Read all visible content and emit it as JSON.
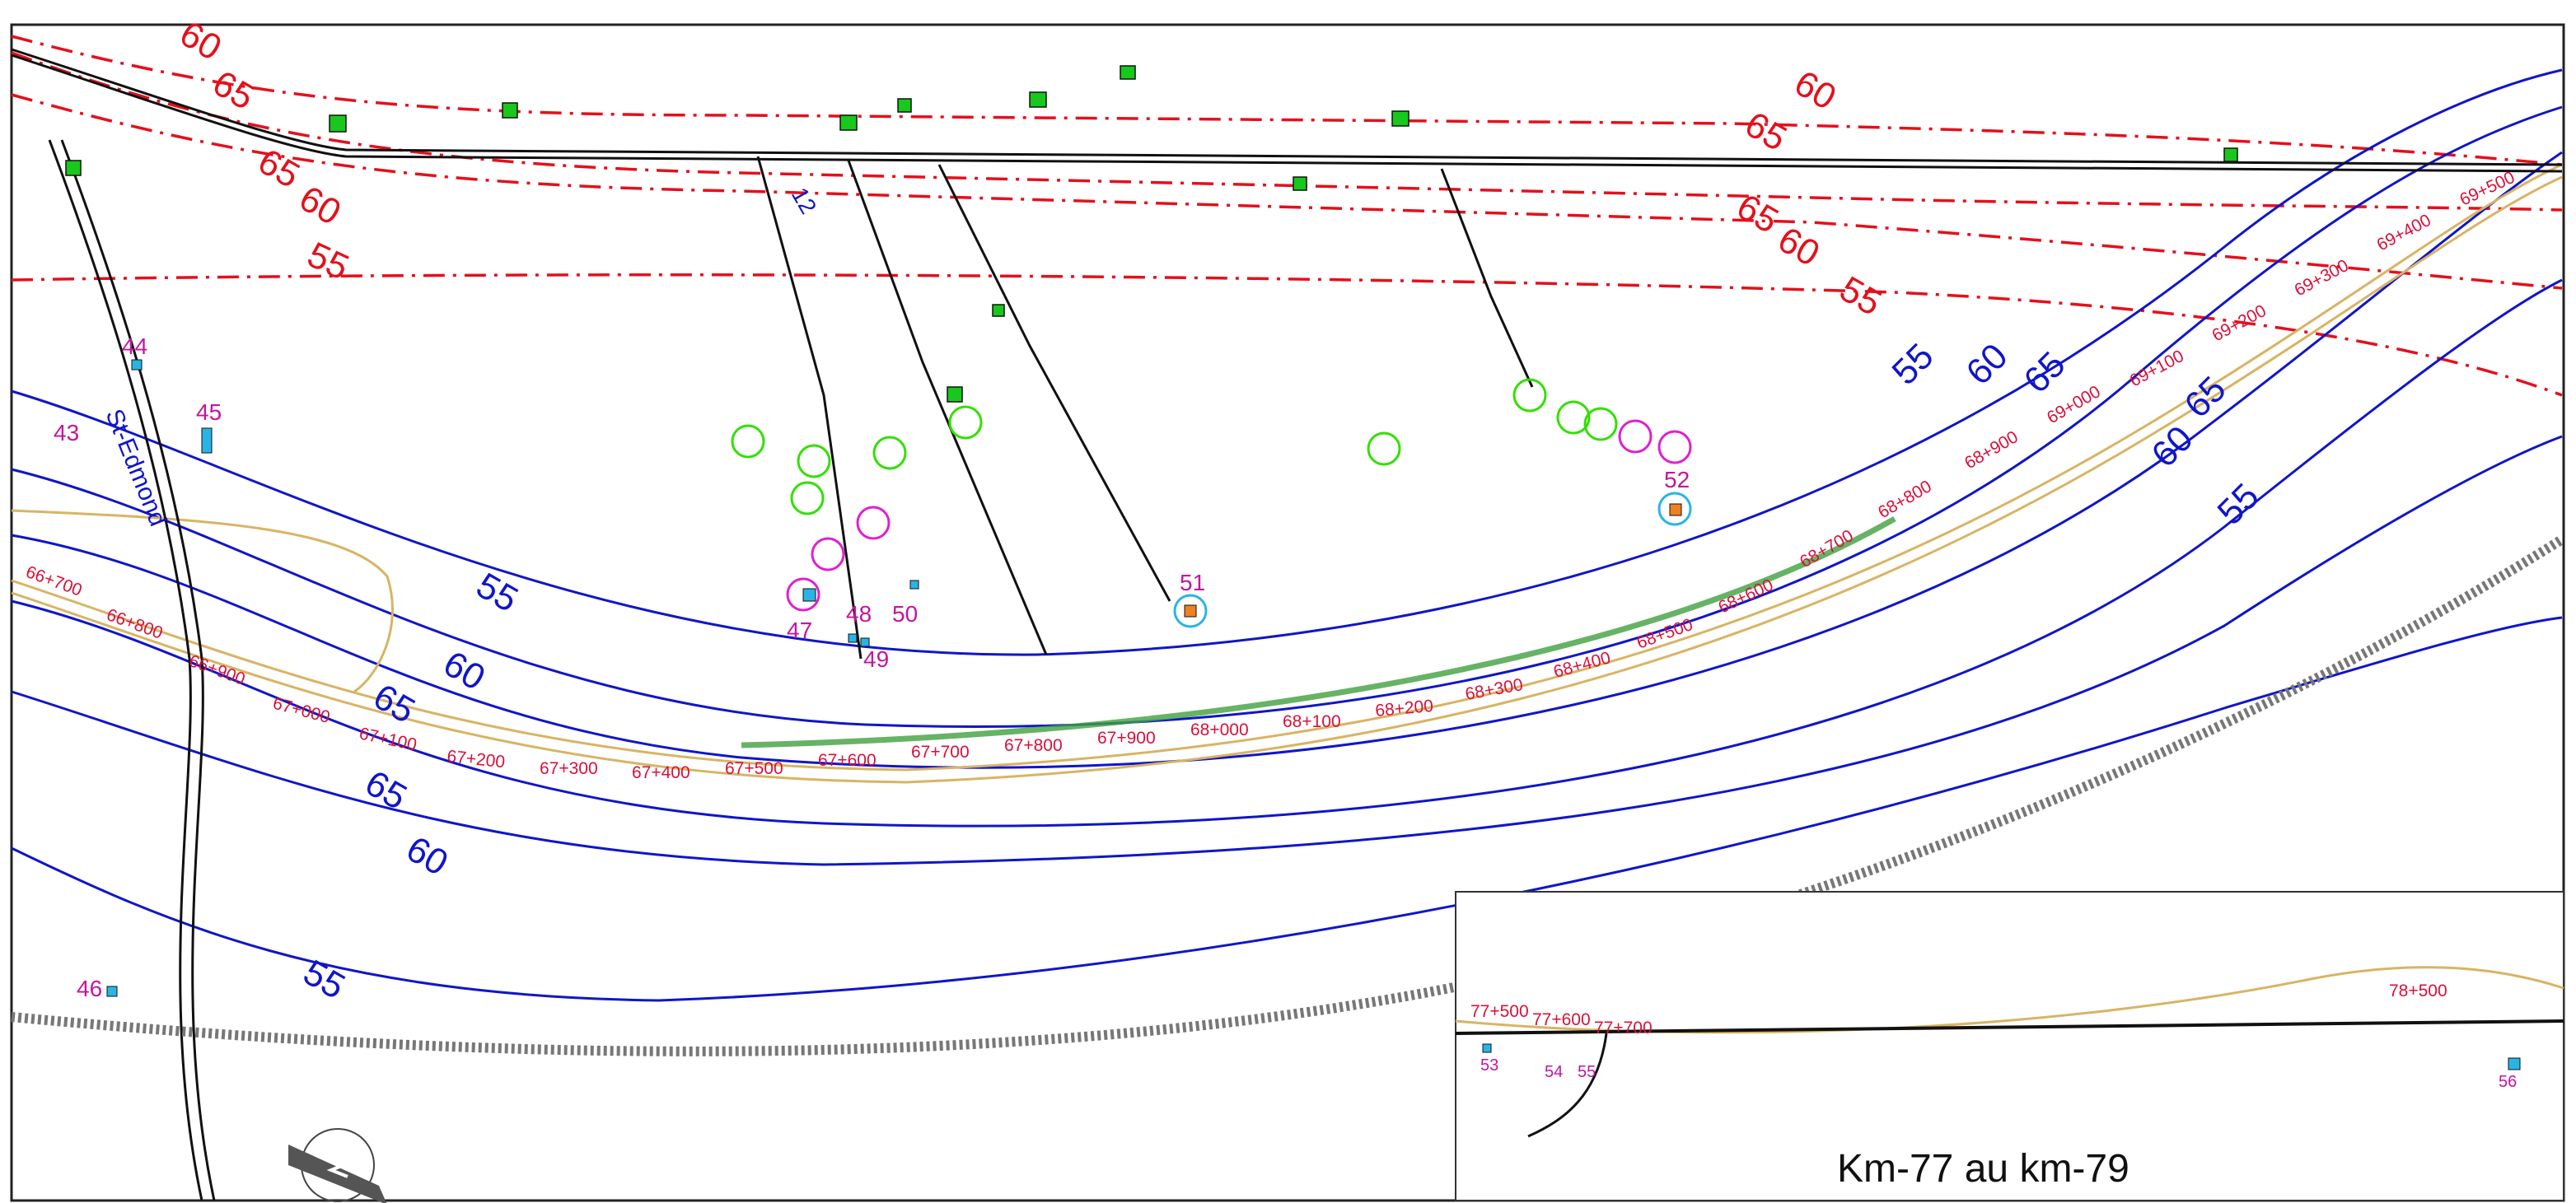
{
  "map": {
    "red_contours": [
      "60",
      "65",
      "65",
      "60",
      "55",
      "60",
      "65",
      "65",
      "60",
      "55"
    ],
    "blue_contours": [
      "55",
      "60",
      "65",
      "65",
      "60",
      "55",
      "55",
      "60",
      "65",
      "65",
      "60",
      "55"
    ],
    "receptors": [
      "12",
      "43",
      "44",
      "45",
      "46",
      "47",
      "48",
      "49",
      "50",
      "51",
      "52",
      "53",
      "54",
      "55",
      "56"
    ],
    "road_label": "St-Edmond",
    "km_main": [
      "66+700",
      "66+800",
      "66+900",
      "67+000",
      "67+100",
      "67+200",
      "67+300",
      "67+400",
      "67+500",
      "67+600",
      "67+700",
      "67+800",
      "67+900",
      "68+000",
      "68+100",
      "68+200",
      "68+300",
      "68+400",
      "68+500",
      "68+600",
      "68+700",
      "68+800",
      "68+900",
      "69+000",
      "69+100",
      "69+200",
      "69+300",
      "69+400",
      "69+500"
    ],
    "inset": {
      "title": "Km-77 au km-79",
      "km": [
        "77+500",
        "77+600",
        "77+700",
        "78+500"
      ]
    },
    "colors": {
      "red_contour": "#e4101c",
      "blue_contour": "#1016c8",
      "receptor_label": "#c2169e",
      "building": "#18c81c",
      "receptor": "#2ab4e6",
      "ring_green": "#32e000",
      "ring_magenta": "#e020d0",
      "highway_edge": "#d8b464"
    }
  }
}
